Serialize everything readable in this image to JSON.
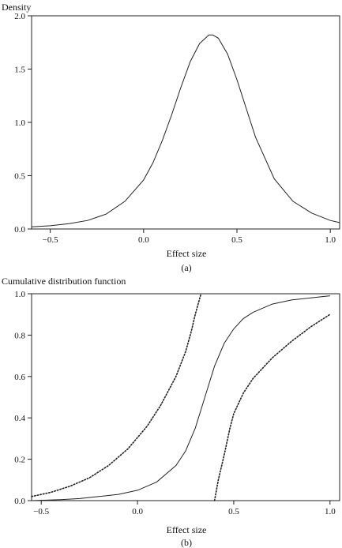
{
  "chart_data": [
    {
      "type": "line",
      "panel_label": "(a)",
      "ylabel": "Density",
      "xlabel": "Effect size",
      "xlim": [
        -0.6,
        1.05
      ],
      "ylim": [
        0.0,
        2.0
      ],
      "xticks": [
        -0.5,
        0.0,
        0.5,
        1.0
      ],
      "xtick_labels": [
        "−0.5",
        "0.0",
        "0.5",
        "1.0"
      ],
      "yticks": [
        0.0,
        0.5,
        1.0,
        1.5,
        2.0
      ],
      "ytick_labels": [
        "0.0",
        "0.5",
        "1.0",
        "1.5",
        "2.0"
      ],
      "grid": false,
      "series": [
        {
          "style": "solid",
          "x": [
            -0.6,
            -0.5,
            -0.4,
            -0.3,
            -0.2,
            -0.1,
            0.0,
            0.05,
            0.1,
            0.15,
            0.2,
            0.25,
            0.3,
            0.35,
            0.37,
            0.4,
            0.45,
            0.5,
            0.55,
            0.6,
            0.7,
            0.8,
            0.9,
            1.0,
            1.05
          ],
          "y": [
            0.02,
            0.03,
            0.05,
            0.08,
            0.14,
            0.26,
            0.46,
            0.62,
            0.83,
            1.07,
            1.33,
            1.57,
            1.74,
            1.82,
            1.82,
            1.79,
            1.64,
            1.4,
            1.13,
            0.86,
            0.47,
            0.26,
            0.15,
            0.08,
            0.06
          ]
        }
      ]
    },
    {
      "type": "line",
      "panel_label": "(b)",
      "ylabel": "Cumulative distribution function",
      "xlabel": "Effect size",
      "xlim": [
        -0.55,
        1.05
      ],
      "ylim": [
        0.0,
        1.0
      ],
      "xticks": [
        -0.5,
        0.0,
        0.5,
        1.0
      ],
      "xtick_labels": [
        "−0.5",
        "0.0",
        "0.5",
        "1.0"
      ],
      "yticks": [
        0.0,
        0.2,
        0.4,
        0.6,
        0.8,
        1.0
      ],
      "ytick_labels": [
        "0.0",
        "0.2",
        "0.4",
        "0.6",
        "0.8",
        "1.0"
      ],
      "grid": false,
      "series": [
        {
          "style": "solid",
          "x": [
            -0.55,
            -0.4,
            -0.3,
            -0.2,
            -0.1,
            0.0,
            0.1,
            0.2,
            0.25,
            0.3,
            0.35,
            0.4,
            0.45,
            0.5,
            0.55,
            0.6,
            0.7,
            0.8,
            0.9,
            1.0
          ],
          "y": [
            0.0,
            0.005,
            0.01,
            0.02,
            0.03,
            0.05,
            0.09,
            0.17,
            0.24,
            0.35,
            0.5,
            0.65,
            0.76,
            0.83,
            0.88,
            0.91,
            0.95,
            0.97,
            0.98,
            0.99
          ]
        },
        {
          "style": "dotted",
          "x": [
            -0.55,
            -0.45,
            -0.35,
            -0.25,
            -0.15,
            -0.05,
            0.05,
            0.12,
            0.2,
            0.25,
            0.28,
            0.3,
            0.33
          ],
          "y": [
            0.02,
            0.04,
            0.07,
            0.11,
            0.17,
            0.25,
            0.36,
            0.46,
            0.6,
            0.72,
            0.82,
            0.9,
            1.0
          ]
        },
        {
          "style": "dotted",
          "x": [
            0.4,
            0.42,
            0.45,
            0.48,
            0.5,
            0.55,
            0.6,
            0.7,
            0.8,
            0.9,
            1.0
          ],
          "y": [
            0.0,
            0.1,
            0.22,
            0.35,
            0.42,
            0.52,
            0.59,
            0.69,
            0.77,
            0.84,
            0.9
          ]
        }
      ]
    }
  ]
}
